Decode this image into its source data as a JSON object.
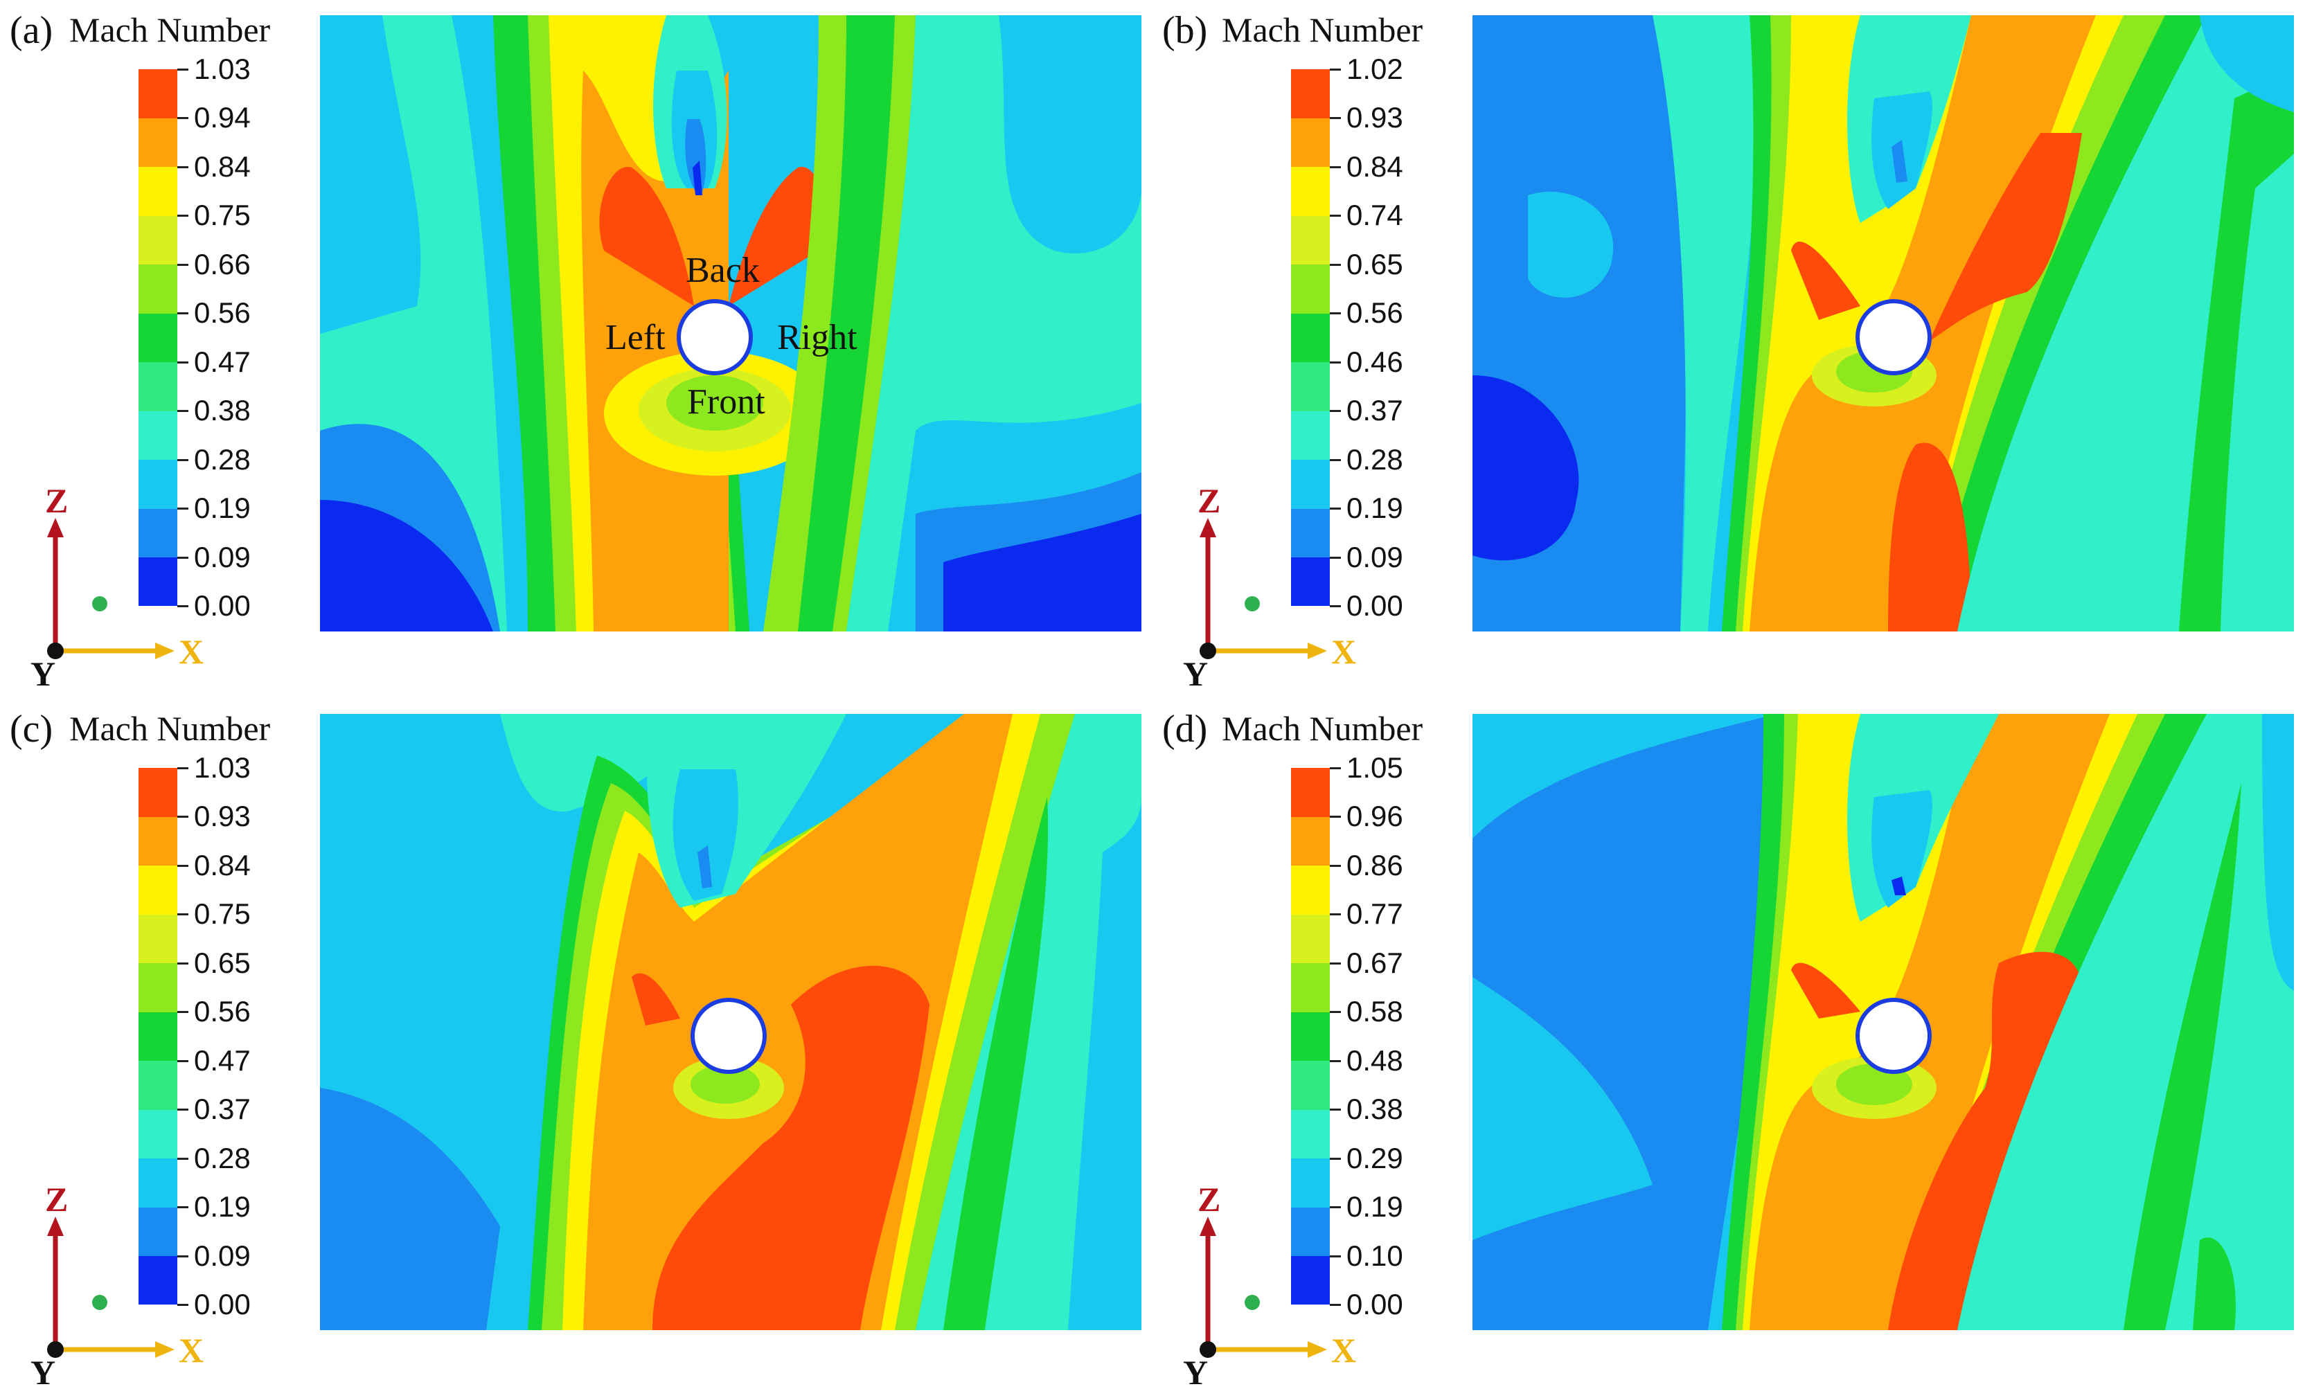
{
  "figure": {
    "legend_title": "Mach Number",
    "axis_labels": {
      "z": "Z",
      "x": "X",
      "y": "Y"
    },
    "face_labels": {
      "back": "Back",
      "left": "Left",
      "right": "Right",
      "front": "Front"
    },
    "colors": {
      "levels": [
        "#0a2af0",
        "#1a8bf0",
        "#19c8f0",
        "#2ff0c8",
        "#32e880",
        "#16d636",
        "#8ee81e",
        "#d8f01e",
        "#fff200",
        "#ffa10a",
        "#ff4b0a"
      ],
      "axis_z": "#b4141e",
      "axis_x": "#f0b40f",
      "origin_dot": "#2fb050"
    },
    "panels": [
      {
        "id": "a",
        "label": "(a)",
        "ticks": [
          "1.03",
          "0.94",
          "0.84",
          "0.75",
          "0.66",
          "0.56",
          "0.47",
          "0.38",
          "0.28",
          "0.19",
          "0.09",
          "0.00"
        ]
      },
      {
        "id": "b",
        "label": "(b)",
        "ticks": [
          "1.02",
          "0.93",
          "0.84",
          "0.74",
          "0.65",
          "0.56",
          "0.46",
          "0.37",
          "0.28",
          "0.19",
          "0.09",
          "0.00"
        ]
      },
      {
        "id": "c",
        "label": "(c)",
        "ticks": [
          "1.03",
          "0.93",
          "0.84",
          "0.75",
          "0.65",
          "0.56",
          "0.47",
          "0.37",
          "0.28",
          "0.19",
          "0.09",
          "0.00"
        ]
      },
      {
        "id": "d",
        "label": "(d)",
        "ticks": [
          "1.05",
          "0.96",
          "0.86",
          "0.77",
          "0.67",
          "0.58",
          "0.48",
          "0.38",
          "0.29",
          "0.19",
          "0.10",
          "0.00"
        ]
      }
    ]
  }
}
